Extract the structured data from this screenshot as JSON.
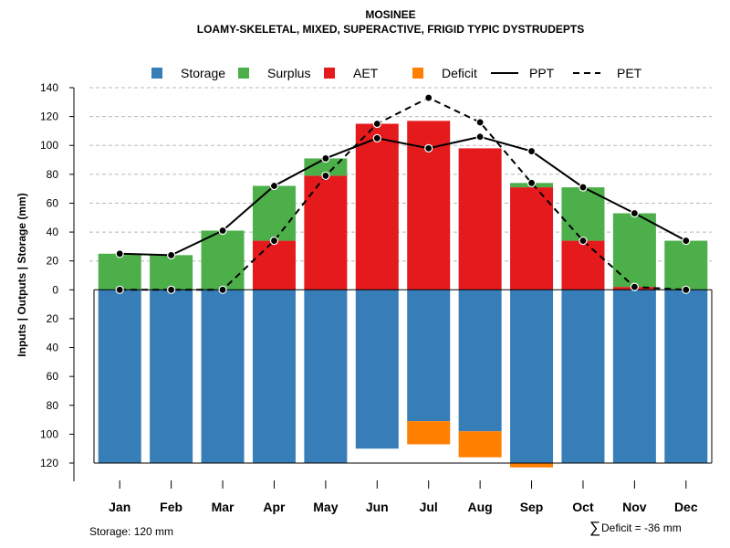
{
  "chart_data": {
    "type": "bar",
    "title": "MOSINEE",
    "subtitle": "LOAMY-SKELETAL, MIXED, SUPERACTIVE, FRIGID TYPIC DYSTRUDEPTS",
    "ylabel": "Inputs | Outputs | Storage    (mm)",
    "ylim": [
      -120,
      140
    ],
    "yticks": [
      140,
      120,
      100,
      80,
      60,
      40,
      20,
      0,
      -20,
      -40,
      -60,
      -80,
      -100,
      -120
    ],
    "ytick_labels": [
      "140",
      "120",
      "100",
      "80",
      "60",
      "40",
      "20",
      "0",
      "20",
      "40",
      "60",
      "80",
      "100",
      "120"
    ],
    "categories": [
      "Jan",
      "Feb",
      "Mar",
      "Apr",
      "May",
      "Jun",
      "Jul",
      "Aug",
      "Sep",
      "Oct",
      "Nov",
      "Dec"
    ],
    "legend": [
      {
        "name": "Storage",
        "kind": "box",
        "color": "#377eb8"
      },
      {
        "name": "Surplus",
        "kind": "box",
        "color": "#4daf4a"
      },
      {
        "name": "AET",
        "kind": "box",
        "color": "#e41a1c"
      },
      {
        "name": "Deficit",
        "kind": "box",
        "color": "#ff7f00"
      },
      {
        "name": "PPT",
        "kind": "line",
        "color": "#000000",
        "dash": "none"
      },
      {
        "name": "PET",
        "kind": "line",
        "color": "#000000",
        "dash": "dashed"
      }
    ],
    "series": [
      {
        "name": "Storage",
        "values": [
          120,
          120,
          120,
          120,
          120,
          110,
          91,
          98,
          120,
          120,
          120,
          120
        ]
      },
      {
        "name": "AET",
        "values": [
          0,
          0,
          0,
          34,
          79,
          115,
          117,
          98,
          71,
          34,
          2,
          0
        ]
      },
      {
        "name": "Surplus",
        "values": [
          25,
          24,
          41,
          38,
          12,
          0,
          0,
          0,
          3,
          37,
          51,
          34
        ]
      },
      {
        "name": "Deficit",
        "values": [
          0,
          0,
          0,
          0,
          0,
          0,
          16,
          18,
          3,
          0,
          0,
          0
        ]
      },
      {
        "name": "PPT",
        "values": [
          25,
          24,
          41,
          72,
          91,
          105,
          98,
          106,
          96,
          71,
          53,
          34
        ]
      },
      {
        "name": "PET",
        "values": [
          0,
          0,
          0,
          34,
          79,
          115,
          133,
          116,
          74,
          34,
          2,
          0
        ]
      }
    ],
    "grid": true,
    "legend_position": "top",
    "footer_left": "Storage: 120 mm",
    "footer_right_symbol": "∑",
    "footer_right": "Deficit = -36 mm"
  }
}
